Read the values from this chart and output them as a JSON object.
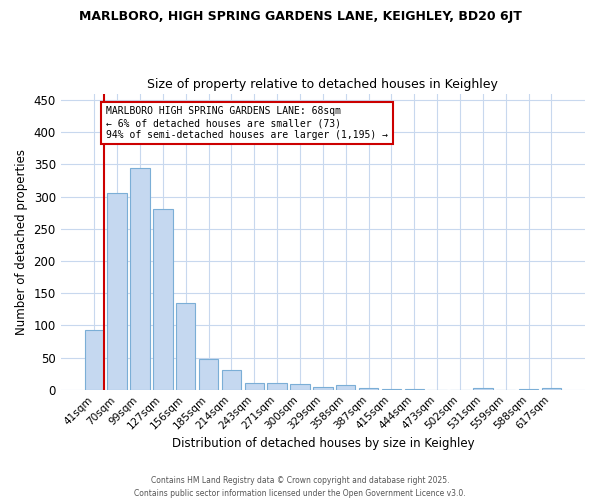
{
  "title_line1": "MARLBORO, HIGH SPRING GARDENS LANE, KEIGHLEY, BD20 6JT",
  "title_line2": "Size of property relative to detached houses in Keighley",
  "xlabel": "Distribution of detached houses by size in Keighley",
  "ylabel": "Number of detached properties",
  "categories": [
    "41sqm",
    "70sqm",
    "99sqm",
    "127sqm",
    "156sqm",
    "185sqm",
    "214sqm",
    "243sqm",
    "271sqm",
    "300sqm",
    "329sqm",
    "358sqm",
    "387sqm",
    "415sqm",
    "444sqm",
    "473sqm",
    "502sqm",
    "531sqm",
    "559sqm",
    "588sqm",
    "617sqm"
  ],
  "values": [
    93,
    305,
    344,
    281,
    134,
    47,
    30,
    10,
    11,
    9,
    5,
    7,
    3,
    1,
    1,
    0,
    0,
    3,
    0,
    1,
    2
  ],
  "bar_color": "#c5d8f0",
  "bar_edge_color": "#7baed6",
  "highlight_color": "#cc0000",
  "annotation_text": "MARLBORO HIGH SPRING GARDENS LANE: 68sqm\n← 6% of detached houses are smaller (73)\n94% of semi-detached houses are larger (1,195) →",
  "ylim": [
    0,
    460
  ],
  "yticks": [
    0,
    50,
    100,
    150,
    200,
    250,
    300,
    350,
    400,
    450
  ],
  "bg_color": "#ffffff",
  "plot_bg_color": "#ffffff",
  "grid_color": "#c8d8ee",
  "footer_text": "Contains HM Land Registry data © Crown copyright and database right 2025.\nContains public sector information licensed under the Open Government Licence v3.0.",
  "fig_width": 6.0,
  "fig_height": 5.0,
  "dpi": 100
}
